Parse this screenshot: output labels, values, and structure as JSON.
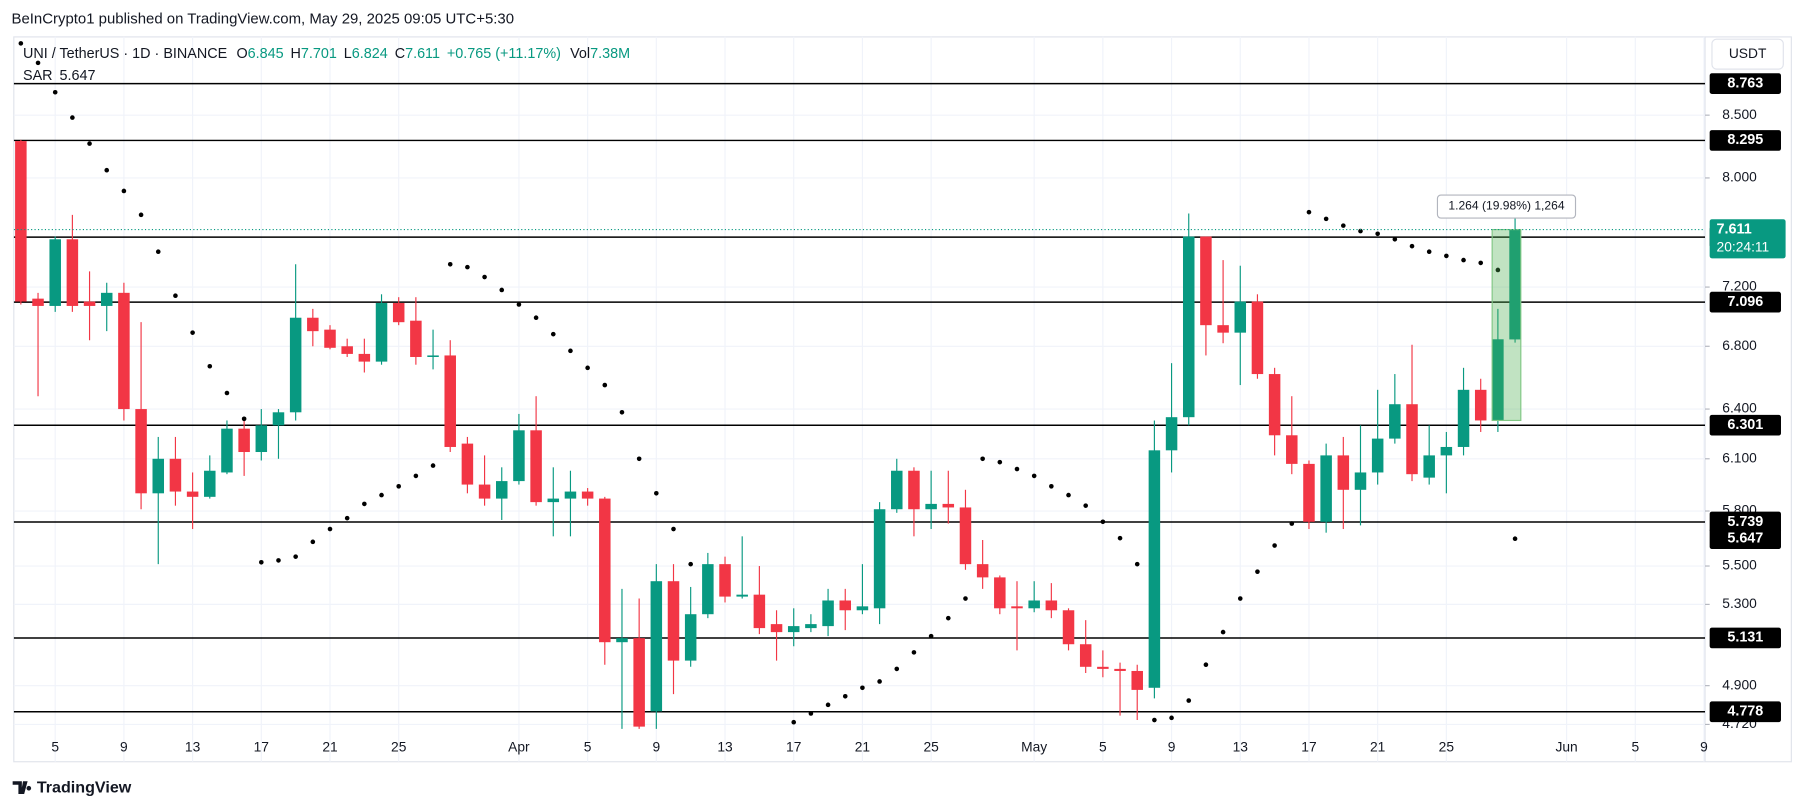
{
  "header": {
    "published": "BeInCrypto1 published on TradingView.com, May 29, 2025 09:05 UTC+5:30"
  },
  "footer": {
    "logo": "TradingView"
  },
  "chart_data": {
    "type": "candlestick",
    "symbol": "UNI / TetherUS · 1D · BINANCE",
    "legend_labels": {
      "open": "O",
      "high": "H",
      "low": "L",
      "close": "C",
      "volume": "Vol"
    },
    "change": "+0.765 (+11.17%)",
    "volume": "7.38M",
    "indicator": "SAR",
    "currency": "USDT",
    "countdown": "20:24:11",
    "measure": "1.264 (19.98%) 1,264",
    "up_color": "#089981",
    "down_color": "#f23645",
    "sar_color": "#000000",
    "level_color": "#000000",
    "log_scale": true,
    "grid": true,
    "x": [
      "2025-03-03",
      "2025-03-04",
      "2025-03-05",
      "2025-03-06",
      "2025-03-07",
      "2025-03-08",
      "2025-03-09",
      "2025-03-10",
      "2025-03-11",
      "2025-03-12",
      "2025-03-13",
      "2025-03-14",
      "2025-03-15",
      "2025-03-16",
      "2025-03-17",
      "2025-03-18",
      "2025-03-19",
      "2025-03-20",
      "2025-03-21",
      "2025-03-22",
      "2025-03-23",
      "2025-03-24",
      "2025-03-25",
      "2025-03-26",
      "2025-03-27",
      "2025-03-28",
      "2025-03-29",
      "2025-03-30",
      "2025-03-31",
      "2025-04-01",
      "2025-04-02",
      "2025-04-03",
      "2025-04-04",
      "2025-04-05",
      "2025-04-06",
      "2025-04-07",
      "2025-04-08",
      "2025-04-09",
      "2025-04-10",
      "2025-04-11",
      "2025-04-12",
      "2025-04-13",
      "2025-04-14",
      "2025-04-15",
      "2025-04-16",
      "2025-04-17",
      "2025-04-18",
      "2025-04-19",
      "2025-04-20",
      "2025-04-21",
      "2025-04-22",
      "2025-04-23",
      "2025-04-24",
      "2025-04-25",
      "2025-04-26",
      "2025-04-27",
      "2025-04-28",
      "2025-04-29",
      "2025-04-30",
      "2025-05-01",
      "2025-05-02",
      "2025-05-03",
      "2025-05-04",
      "2025-05-05",
      "2025-05-06",
      "2025-05-07",
      "2025-05-08",
      "2025-05-09",
      "2025-05-10",
      "2025-05-11",
      "2025-05-12",
      "2025-05-13",
      "2025-05-14",
      "2025-05-15",
      "2025-05-16",
      "2025-05-17",
      "2025-05-18",
      "2025-05-19",
      "2025-05-20",
      "2025-05-21",
      "2025-05-22",
      "2025-05-23",
      "2025-05-24",
      "2025-05-25",
      "2025-05-26",
      "2025-05-27",
      "2025-05-28",
      "2025-05-29"
    ],
    "open": [
      8.29,
      7.12,
      7.07,
      7.54,
      7.1,
      7.07,
      7.16,
      6.4,
      5.9,
      6.1,
      5.91,
      5.88,
      6.02,
      6.28,
      6.14,
      6.3,
      6.38,
      6.99,
      6.91,
      6.8,
      6.75,
      6.7,
      7.09,
      6.97,
      6.73,
      6.74,
      6.19,
      5.95,
      5.87,
      5.97,
      6.27,
      5.85,
      5.87,
      5.91,
      5.87,
      5.11,
      5.13,
      4.78,
      5.42,
      5.02,
      5.25,
      5.51,
      5.34,
      5.35,
      5.2,
      5.16,
      5.18,
      5.19,
      5.32,
      5.27,
      5.28,
      5.81,
      6.03,
      5.81,
      5.84,
      5.82,
      5.51,
      5.44,
      5.29,
      5.28,
      5.32,
      5.27,
      5.1,
      4.99,
      4.98,
      4.97,
      4.89,
      6.15,
      6.35,
      7.56,
      6.94,
      6.89,
      7.1,
      6.62,
      6.24,
      6.07,
      5.74,
      6.12,
      5.92,
      6.02,
      6.22,
      6.43,
      5.99,
      6.12,
      6.17,
      6.52,
      6.33,
      6.845
    ],
    "high": [
      8.3,
      7.16,
      7.56,
      7.72,
      7.31,
      7.23,
      7.23,
      6.96,
      6.23,
      6.23,
      6.02,
      6.12,
      6.33,
      6.33,
      6.4,
      6.4,
      7.36,
      7.05,
      6.94,
      6.85,
      6.85,
      7.15,
      7.13,
      7.13,
      6.91,
      6.84,
      6.23,
      6.12,
      6.05,
      6.37,
      6.48,
      6.05,
      6.03,
      5.93,
      5.88,
      5.38,
      5.33,
      5.51,
      5.51,
      5.39,
      5.57,
      5.55,
      5.66,
      5.5,
      5.27,
      5.28,
      5.25,
      5.38,
      5.38,
      5.51,
      5.85,
      6.1,
      6.05,
      6.03,
      6.03,
      5.92,
      5.64,
      5.45,
      5.42,
      5.42,
      5.41,
      5.28,
      5.22,
      5.07,
      5.01,
      5.0,
      6.33,
      6.69,
      7.73,
      7.56,
      7.39,
      7.35,
      7.15,
      6.66,
      6.48,
      6.09,
      6.19,
      6.23,
      6.3,
      6.52,
      6.62,
      6.81,
      6.3,
      6.26,
      6.66,
      6.59,
      7.05,
      7.701
    ],
    "low": [
      7.08,
      6.48,
      7.03,
      7.03,
      6.84,
      6.9,
      6.33,
      5.81,
      5.51,
      5.83,
      5.7,
      5.87,
      6.01,
      6.0,
      6.09,
      6.1,
      6.33,
      6.8,
      6.78,
      6.73,
      6.63,
      6.68,
      6.94,
      6.68,
      6.65,
      6.14,
      5.9,
      5.83,
      5.75,
      5.95,
      5.83,
      5.66,
      5.66,
      5.83,
      5.0,
      4.7,
      4.7,
      4.7,
      4.86,
      4.99,
      5.23,
      5.31,
      5.33,
      5.15,
      5.02,
      5.09,
      5.16,
      5.14,
      5.17,
      5.25,
      5.2,
      5.79,
      5.66,
      5.7,
      5.73,
      5.48,
      5.38,
      5.25,
      5.07,
      5.26,
      5.23,
      5.07,
      4.96,
      4.94,
      4.76,
      4.74,
      4.84,
      6.02,
      6.3,
      6.74,
      6.82,
      6.55,
      6.59,
      6.12,
      6.01,
      5.7,
      5.68,
      5.7,
      5.72,
      5.95,
      6.19,
      5.97,
      5.95,
      5.9,
      6.12,
      6.26,
      6.26,
      6.824
    ],
    "close": [
      7.1,
      7.07,
      7.54,
      7.07,
      7.07,
      7.16,
      6.4,
      5.9,
      6.1,
      5.91,
      5.88,
      6.03,
      6.28,
      6.14,
      6.3,
      6.38,
      6.99,
      6.9,
      6.79,
      6.75,
      6.7,
      7.09,
      6.96,
      6.73,
      6.74,
      6.17,
      5.95,
      5.87,
      5.97,
      6.27,
      5.85,
      5.87,
      5.91,
      5.87,
      5.11,
      5.13,
      4.71,
      5.42,
      5.02,
      5.25,
      5.51,
      5.34,
      5.35,
      5.18,
      5.16,
      5.19,
      5.2,
      5.32,
      5.27,
      5.29,
      5.81,
      6.03,
      5.81,
      5.84,
      5.82,
      5.51,
      5.44,
      5.28,
      5.28,
      5.32,
      5.27,
      5.1,
      4.99,
      4.98,
      4.97,
      4.88,
      6.15,
      6.35,
      7.56,
      6.94,
      6.89,
      7.1,
      6.62,
      6.24,
      6.07,
      5.74,
      6.12,
      5.92,
      6.02,
      6.22,
      6.43,
      6.01,
      6.12,
      6.17,
      6.52,
      6.33,
      6.846,
      7.611
    ],
    "sar": [
      9.11,
      8.94,
      8.69,
      8.48,
      8.27,
      8.06,
      7.9,
      7.72,
      7.45,
      7.14,
      6.89,
      6.67,
      6.5,
      6.34,
      5.52,
      5.53,
      5.55,
      5.63,
      5.7,
      5.76,
      5.84,
      5.89,
      5.94,
      6.0,
      6.06,
      7.36,
      7.34,
      7.27,
      7.18,
      7.08,
      6.99,
      6.88,
      6.77,
      6.66,
      6.55,
      6.38,
      6.1,
      5.9,
      5.7,
      5.51,
      null,
      null,
      null,
      null,
      null,
      4.73,
      4.77,
      4.81,
      4.85,
      4.89,
      4.92,
      4.98,
      5.06,
      5.14,
      5.23,
      5.33,
      6.1,
      6.08,
      6.04,
      6.0,
      5.94,
      5.89,
      5.83,
      5.74,
      5.65,
      5.51,
      4.74,
      4.75,
      4.83,
      5.0,
      5.16,
      5.33,
      5.47,
      5.61,
      5.73,
      7.74,
      7.69,
      7.64,
      7.6,
      7.58,
      7.54,
      7.49,
      7.45,
      7.42,
      7.39,
      7.37,
      7.32,
      5.647
    ],
    "levels": [
      8.763,
      8.295,
      7.556,
      7.096,
      6.301,
      5.739,
      5.131,
      4.778
    ],
    "ylim": [
      4.553,
      9.167
    ],
    "yticks": [
      {
        "value": 8.5,
        "label": "8.500"
      },
      {
        "value": 8.0,
        "label": "8.000"
      },
      {
        "value": 7.2,
        "label": "7.200"
      },
      {
        "value": 6.8,
        "label": "6.800"
      },
      {
        "value": 6.4,
        "label": "6.400"
      },
      {
        "value": 6.1,
        "label": "6.100"
      },
      {
        "value": 5.8,
        "label": "5.800"
      },
      {
        "value": 5.5,
        "label": "5.500"
      },
      {
        "value": 5.3,
        "label": "5.300"
      },
      {
        "value": 4.9,
        "label": "4.900"
      },
      {
        "value": 4.72,
        "label": "4.720"
      }
    ],
    "xlim": [
      "2025-03-02",
      "2025-06-10"
    ],
    "xticks": [
      {
        "value": "2025-03-05",
        "label": "5"
      },
      {
        "value": "2025-03-09",
        "label": "9"
      },
      {
        "value": "2025-03-13",
        "label": "13"
      },
      {
        "value": "2025-03-17",
        "label": "17"
      },
      {
        "value": "2025-03-21",
        "label": "21"
      },
      {
        "value": "2025-03-25",
        "label": "25"
      },
      {
        "value": "2025-04-01",
        "label": "Apr"
      },
      {
        "value": "2025-04-05",
        "label": "5"
      },
      {
        "value": "2025-04-09",
        "label": "9"
      },
      {
        "value": "2025-04-13",
        "label": "13"
      },
      {
        "value": "2025-04-17",
        "label": "17"
      },
      {
        "value": "2025-04-21",
        "label": "21"
      },
      {
        "value": "2025-04-25",
        "label": "25"
      },
      {
        "value": "2025-05-01",
        "label": "May"
      },
      {
        "value": "2025-05-05",
        "label": "5"
      },
      {
        "value": "2025-05-09",
        "label": "9"
      },
      {
        "value": "2025-05-13",
        "label": "13"
      },
      {
        "value": "2025-05-17",
        "label": "17"
      },
      {
        "value": "2025-05-21",
        "label": "21"
      },
      {
        "value": "2025-05-25",
        "label": "25"
      },
      {
        "value": "2025-06-01",
        "label": "Jun"
      },
      {
        "value": "2025-06-05",
        "label": "5"
      },
      {
        "value": "2025-06-09",
        "label": "9"
      }
    ]
  }
}
